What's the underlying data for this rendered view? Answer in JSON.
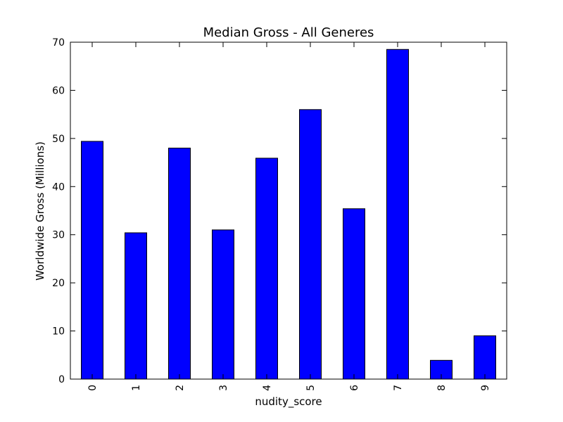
{
  "chart_data": {
    "type": "bar",
    "title": "Median Gross - All Generes",
    "xlabel": "nudity_score",
    "ylabel": "Worldwide Gross (Millions)",
    "categories": [
      "0",
      "1",
      "2",
      "3",
      "4",
      "5",
      "6",
      "7",
      "8",
      "9"
    ],
    "values": [
      49.4,
      30.4,
      48.0,
      31.0,
      45.9,
      56.0,
      35.4,
      68.5,
      3.9,
      9.0
    ],
    "ylim": [
      0,
      70
    ],
    "yticks": [
      "0",
      "10",
      "20",
      "30",
      "40",
      "50",
      "60",
      "70"
    ],
    "grid": false,
    "legend": "none",
    "bar_color": "#0000ff",
    "edge_color": "#000000"
  }
}
